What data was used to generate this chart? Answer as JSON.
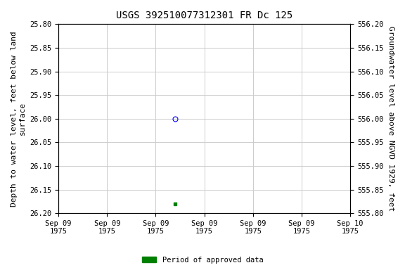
{
  "title": "USGS 392510077312301 FR Dc 125",
  "ylabel_left": "Depth to water level, feet below land\nsurface",
  "ylabel_right": "Groundwater level above NGVD 1929, feet",
  "ylim_left": [
    25.8,
    26.2
  ],
  "ylim_right": [
    555.8,
    556.2
  ],
  "yticks_left": [
    25.8,
    25.85,
    25.9,
    25.95,
    26.0,
    26.05,
    26.1,
    26.15,
    26.2
  ],
  "yticks_right": [
    555.8,
    555.85,
    555.9,
    555.95,
    556.0,
    556.05,
    556.1,
    556.15,
    556.2
  ],
  "data_point_open": {
    "date_num": 0.4,
    "value": 26.0,
    "color": "blue",
    "marker": "o",
    "fillstyle": "none",
    "markersize": 5
  },
  "data_point_filled": {
    "date_num": 0.4,
    "value": 26.18,
    "color": "green",
    "marker": "s",
    "fillstyle": "full",
    "markersize": 3
  },
  "xtick_labels": [
    "Sep 09\n1975",
    "Sep 09\n1975",
    "Sep 09\n1975",
    "Sep 09\n1975",
    "Sep 09\n1975",
    "Sep 09\n1975",
    "Sep 10\n1975"
  ],
  "legend_label": "Period of approved data",
  "legend_color": "#008000",
  "background_color": "#ffffff",
  "grid_color": "#cccccc",
  "title_fontsize": 10,
  "label_fontsize": 8,
  "tick_fontsize": 7.5
}
